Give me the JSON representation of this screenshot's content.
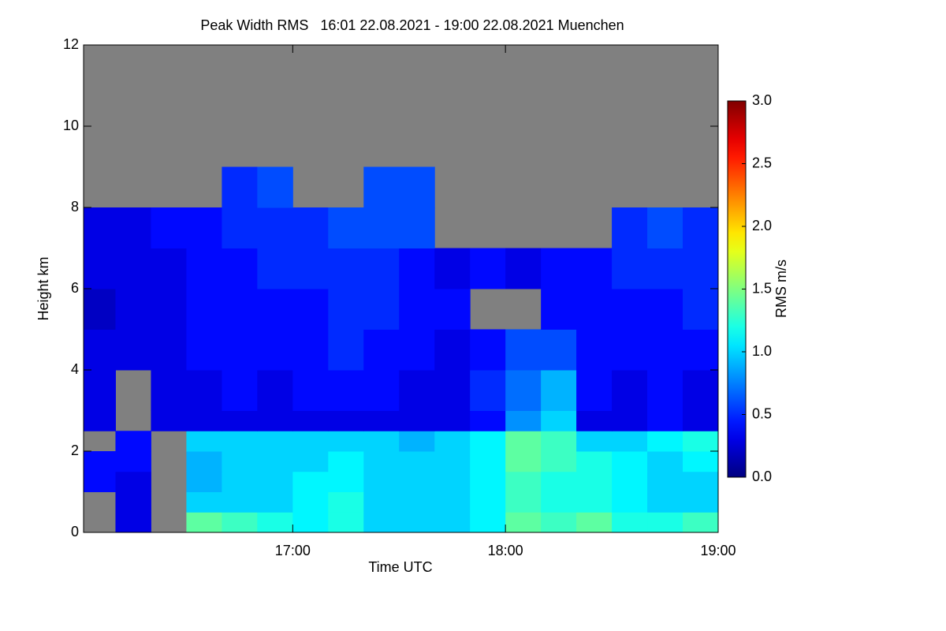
{
  "chart_data": {
    "type": "heatmap",
    "title": "Peak Width RMS   16:01 22.08.2021 - 19:00 22.08.2021 Muenchen",
    "x_label": "Time UTC",
    "y_label": "Height km",
    "colorbar_label": "RMS m/s",
    "colormap": "jet",
    "no_data_color": "#808080",
    "xlim": [
      16.0167,
      19.0
    ],
    "xticks": [
      {
        "value": 17,
        "label": "17:00"
      },
      {
        "value": 18,
        "label": "18:00"
      },
      {
        "value": 19,
        "label": "19:00"
      }
    ],
    "ylim": [
      0,
      12
    ],
    "yticks": [
      0,
      2,
      4,
      6,
      8,
      10,
      12
    ],
    "clim": [
      0,
      3
    ],
    "cticks": [
      {
        "value": 0,
        "label": "0.0"
      },
      {
        "value": 0.5,
        "label": "0.5"
      },
      {
        "value": 1,
        "label": "1.0"
      },
      {
        "value": 1.5,
        "label": "1.5"
      },
      {
        "value": 2,
        "label": "2.0"
      },
      {
        "value": 2.5,
        "label": "2.5"
      },
      {
        "value": 3,
        "label": "3.0"
      }
    ],
    "x_bins": [
      16.0167,
      16.1667,
      16.3333,
      16.5,
      16.6667,
      16.8333,
      17,
      17.1667,
      17.3333,
      17.5,
      17.6667,
      17.8333,
      18,
      18.1667,
      18.3333,
      18.5,
      18.6667,
      18.8333,
      19
    ],
    "y_bins": [
      0,
      0.5,
      1,
      1.5,
      2,
      2.5,
      3,
      4,
      5,
      6,
      7,
      8,
      9,
      12
    ],
    "values": [
      [
        null,
        0.3,
        null,
        1.4,
        1.3,
        1.2,
        1.1,
        1.2,
        1.0,
        1.0,
        1.0,
        1.1,
        1.4,
        1.3,
        1.4,
        1.2,
        1.2,
        1.3
      ],
      [
        null,
        0.3,
        null,
        1.0,
        1.0,
        1.0,
        1.1,
        1.2,
        1.0,
        1.0,
        1.0,
        1.1,
        1.3,
        1.2,
        1.2,
        1.1,
        1.0,
        1.0
      ],
      [
        0.4,
        0.3,
        null,
        0.9,
        1.0,
        1.0,
        1.1,
        1.1,
        1.0,
        1.0,
        1.0,
        1.1,
        1.3,
        1.2,
        1.2,
        1.1,
        1.0,
        1.0
      ],
      [
        0.4,
        0.4,
        null,
        0.9,
        1.0,
        1.0,
        1.0,
        1.1,
        1.0,
        1.0,
        1.0,
        1.1,
        1.4,
        1.3,
        1.2,
        1.1,
        1.0,
        1.1
      ],
      [
        null,
        0.4,
        null,
        1.0,
        1.0,
        1.0,
        1.0,
        1.0,
        1.0,
        0.9,
        1.0,
        1.1,
        1.4,
        1.3,
        1.0,
        1.0,
        1.1,
        1.2
      ],
      [
        0.3,
        null,
        0.3,
        0.3,
        0.3,
        0.3,
        0.3,
        0.3,
        0.3,
        0.3,
        0.3,
        0.4,
        0.8,
        1.0,
        0.3,
        0.3,
        0.4,
        0.3
      ],
      [
        0.3,
        null,
        0.3,
        0.3,
        0.4,
        0.3,
        0.4,
        0.4,
        0.4,
        0.3,
        0.3,
        0.5,
        0.7,
        0.9,
        0.4,
        0.3,
        0.4,
        0.3
      ],
      [
        0.3,
        0.3,
        0.3,
        0.4,
        0.4,
        0.4,
        0.4,
        0.5,
        0.4,
        0.4,
        0.3,
        0.4,
        0.6,
        0.6,
        0.4,
        0.4,
        0.4,
        0.4
      ],
      [
        0.2,
        0.3,
        0.3,
        0.4,
        0.4,
        0.4,
        0.4,
        0.5,
        0.5,
        0.4,
        0.4,
        null,
        null,
        0.4,
        0.4,
        0.4,
        0.4,
        0.5
      ],
      [
        0.3,
        0.3,
        0.3,
        0.4,
        0.4,
        0.5,
        0.5,
        0.5,
        0.5,
        0.4,
        0.3,
        0.4,
        0.3,
        0.4,
        0.4,
        0.5,
        0.5,
        0.5
      ],
      [
        0.3,
        0.3,
        0.4,
        0.4,
        0.5,
        0.5,
        0.5,
        0.6,
        0.6,
        0.6,
        null,
        null,
        null,
        null,
        null,
        0.5,
        0.6,
        0.5
      ],
      [
        null,
        null,
        null,
        null,
        0.5,
        0.6,
        null,
        null,
        0.6,
        0.6,
        null,
        null,
        null,
        null,
        null,
        null,
        null,
        null
      ],
      [
        null,
        null,
        null,
        null,
        null,
        null,
        null,
        null,
        null,
        null,
        null,
        null,
        null,
        null,
        null,
        null,
        null,
        null
      ]
    ]
  }
}
